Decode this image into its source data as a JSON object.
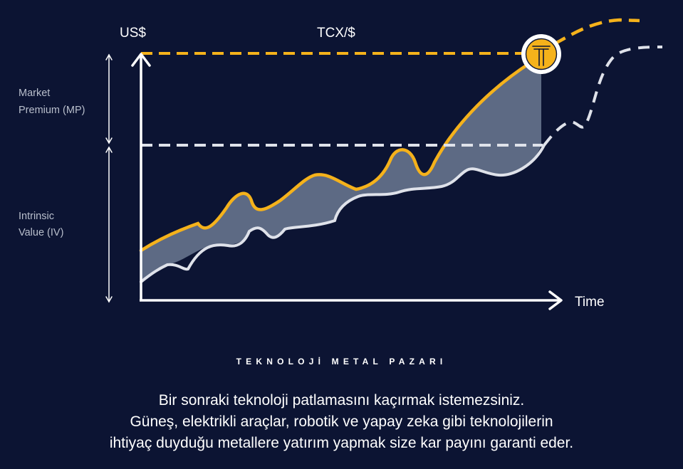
{
  "diagram": {
    "y_axis_label": "US$",
    "series_label": "TCX/$",
    "x_axis_label": "Time",
    "bracket_upper_label": [
      "Market",
      "Premium (MP)"
    ],
    "bracket_lower_label": [
      "Intrinsic",
      "Value (IV)"
    ],
    "colors": {
      "background": "#0c1433",
      "market_line": "#f5b21b",
      "intrinsic_line": "#dfe2ea",
      "premium_fill": "#5d6a84",
      "axis": "#ffffff"
    },
    "logo_icon": "tcx-t-logo"
  },
  "footer": {
    "title": "TEKNOLOJİ METAL PAZARI",
    "lines": [
      "Bir sonraki teknoloji patlamasını kaçırmak istemezsiniz.",
      "Güneş, elektrikli araçlar, robotik ve yapay zeka gibi teknolojilerin",
      "ihtiyaç duyduğu metallere yatırım yapmak size kar payını garanti eder."
    ]
  }
}
